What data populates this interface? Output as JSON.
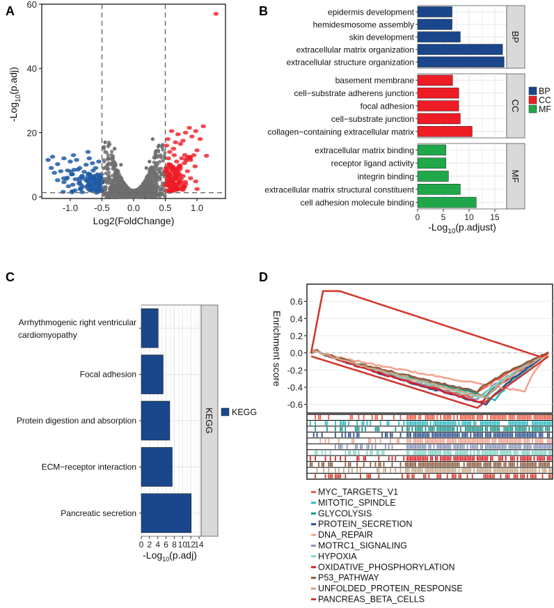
{
  "panels": {
    "A": "A",
    "B": "B",
    "C": "C",
    "D": "D"
  },
  "chart_data": [
    {
      "panel": "A",
      "type": "scatter",
      "title": "",
      "xlabel": "Log2(FoldChange)",
      "ylabel_main": "-Log",
      "ylabel_sub": "10",
      "ylabel_tail": "(p.adj)",
      "xlim": [
        -1.45,
        1.45
      ],
      "ylim": [
        -0.5,
        60
      ],
      "xticks": [
        -1.0,
        -0.5,
        0.0,
        0.5,
        1.0
      ],
      "xtick_labels": [
        "-1.0",
        "-0.5",
        "0.0",
        "0.5",
        "1.0"
      ],
      "yticks": [
        0,
        20,
        40,
        60
      ],
      "thresholds": {
        "fc": 0.5,
        "padj_log": 1.3
      },
      "colors": {
        "down": "#1f5aa6",
        "ns": "#6e6e6e",
        "up": "#ee1c25"
      },
      "highlight_points": {
        "down": [
          [
            -1.35,
            11.5
          ],
          [
            -1.28,
            12.5
          ],
          [
            -1.2,
            10.2
          ],
          [
            -1.1,
            12
          ],
          [
            -1.0,
            11
          ],
          [
            -0.95,
            13
          ],
          [
            -0.9,
            11.5
          ],
          [
            -0.85,
            9
          ],
          [
            -0.75,
            10
          ],
          [
            -0.72,
            14
          ],
          [
            -0.7,
            12
          ],
          [
            -0.65,
            10.5
          ],
          [
            -0.6,
            9
          ],
          [
            -0.55,
            11
          ],
          [
            -1.3,
            9
          ],
          [
            -1.25,
            7.5
          ],
          [
            -1.15,
            8
          ],
          [
            -1.05,
            6
          ],
          [
            -0.98,
            7
          ],
          [
            -0.92,
            5.5
          ],
          [
            -0.88,
            8.5
          ],
          [
            -0.82,
            6.2
          ],
          [
            -0.78,
            7.8
          ],
          [
            -0.74,
            5
          ],
          [
            -0.68,
            6.5
          ],
          [
            -0.64,
            8.2
          ],
          [
            -0.6,
            5.5
          ],
          [
            -0.57,
            7
          ],
          [
            -0.54,
            4.5
          ],
          [
            -0.52,
            6
          ],
          [
            -1.2,
            5.2
          ],
          [
            -1.1,
            4.6
          ],
          [
            -0.96,
            3.8
          ],
          [
            -0.86,
            4.2
          ],
          [
            -0.8,
            3.2
          ],
          [
            -0.72,
            3.6
          ],
          [
            -0.66,
            2.8
          ],
          [
            -0.61,
            3.1
          ],
          [
            -0.56,
            2.5
          ],
          [
            -0.53,
            3.3
          ],
          [
            -0.51,
            2.0
          ],
          [
            -0.7,
            2.2
          ],
          [
            -0.62,
            1.9
          ],
          [
            -0.58,
            1.6
          ]
        ],
        "up": [
          [
            1.3,
            57
          ],
          [
            1.1,
            22
          ],
          [
            1.05,
            18
          ],
          [
            0.98,
            20.5
          ],
          [
            0.92,
            18.8
          ],
          [
            0.88,
            21.5
          ],
          [
            0.82,
            20
          ],
          [
            0.78,
            17.5
          ],
          [
            0.74,
            16.5
          ],
          [
            0.7,
            19.5
          ],
          [
            0.66,
            17
          ],
          [
            0.63,
            15
          ],
          [
            0.6,
            20.5
          ],
          [
            0.57,
            14
          ],
          [
            0.54,
            18
          ],
          [
            0.52,
            16
          ],
          [
            1.0,
            14.5
          ],
          [
            0.95,
            13
          ],
          [
            0.9,
            11.5
          ],
          [
            0.86,
            12.5
          ],
          [
            0.8,
            10.5
          ],
          [
            0.76,
            12
          ],
          [
            0.72,
            9.5
          ],
          [
            0.68,
            11
          ],
          [
            0.64,
            13
          ],
          [
            0.61,
            8.5
          ],
          [
            0.58,
            10
          ],
          [
            0.55,
            12
          ],
          [
            0.53,
            7.5
          ],
          [
            0.51,
            9
          ],
          [
            0.85,
            8
          ],
          [
            0.78,
            6.5
          ],
          [
            0.7,
            7
          ],
          [
            0.65,
            5.5
          ],
          [
            0.6,
            6.2
          ],
          [
            0.56,
            4.8
          ],
          [
            0.53,
            5.5
          ],
          [
            0.51,
            3.8
          ],
          [
            0.75,
            4.5
          ],
          [
            0.67,
            3.5
          ],
          [
            0.59,
            2.8
          ],
          [
            0.55,
            2.2
          ],
          [
            0.52,
            1.8
          ],
          [
            0.9,
            5.8
          ],
          [
            1.15,
            12.8
          ],
          [
            0.97,
            9.5
          ],
          [
            0.62,
            3.2
          ],
          [
            0.8,
            3.0
          ]
        ]
      },
      "ns_points": [
        [
          -0.45,
          17
        ],
        [
          -0.3,
          15
        ],
        [
          0.3,
          18
        ],
        [
          0.4,
          16
        ],
        [
          0.45,
          15.5
        ],
        [
          0.35,
          13
        ],
        [
          -0.4,
          12
        ],
        [
          -0.2,
          10
        ],
        [
          0.25,
          11
        ],
        [
          0.2,
          9
        ]
      ]
    },
    {
      "panel": "B",
      "type": "bar",
      "orientation": "horizontal",
      "title": "",
      "xlabel_main": "-Log",
      "xlabel_sub": "10",
      "xlabel_tail": "(p.adjust)",
      "xlim": [
        0,
        17.3
      ],
      "xticks": [
        0,
        5,
        10,
        15
      ],
      "groups": [
        {
          "name": "BP",
          "color": "#1a478c",
          "categories": [
            "epidermis development",
            "hemidesmosome assembly",
            "skin development",
            "extracellular matrix organization",
            "extracellular structure organization"
          ],
          "values": [
            6.7,
            6.7,
            8.3,
            16.5,
            16.8
          ]
        },
        {
          "name": "CC",
          "color": "#ee1c25",
          "categories": [
            "basement membrane",
            "cell−substrate adherens junction",
            "focal adhesion",
            "cell−substrate junction",
            "collagen−containing extracellular matrix"
          ],
          "values": [
            6.8,
            8.0,
            8.0,
            8.3,
            10.6
          ]
        },
        {
          "name": "MF",
          "color": "#1fa74a",
          "categories": [
            "extracellular matrix binding",
            "receptor ligand activity",
            "integrin binding",
            "extracellular matrix structural constituent",
            "cell adhesion molecule binding"
          ],
          "values": [
            5.5,
            5.5,
            6.0,
            8.3,
            11.4
          ]
        }
      ],
      "legend": [
        "BP",
        "CC",
        "MF"
      ]
    },
    {
      "panel": "C",
      "type": "bar",
      "orientation": "vertical-categories",
      "title": "",
      "xlabel_main": "-Log",
      "xlabel_sub": "10",
      "xlabel_tail": "(p.adj)",
      "xlim": [
        0,
        14.5
      ],
      "xticks": [
        0,
        2,
        4,
        6,
        8,
        10,
        12,
        14
      ],
      "xtick_labels": [
        "0",
        "2",
        "4",
        "6",
        "8",
        "10",
        "12",
        "14"
      ],
      "categories": [
        "Arrhythmogenic right ventricular",
        "Focal adhesion",
        "Protein digestion and absorption",
        "ECM−receptor interaction",
        "Pancreatic secretion"
      ],
      "category_second_line": [
        "cardiomyopathy",
        "",
        "",
        "",
        ""
      ],
      "values": [
        4.1,
        5.3,
        6.9,
        7.5,
        12.1
      ],
      "color": "#1a478c",
      "strip_label": "KEGG",
      "legend": [
        "KEGG"
      ]
    },
    {
      "panel": "D",
      "type": "line",
      "title": "",
      "ylabel": "Enrichment score",
      "ylim": [
        -0.7,
        0.8
      ],
      "yticks": [
        -0.6,
        -0.4,
        -0.2,
        0.0,
        0.2,
        0.4,
        0.6
      ],
      "ytick_labels": [
        "-0.6",
        "-0.4",
        "-0.2",
        "0.0",
        "0.2",
        "0.4",
        "0.6"
      ],
      "series": [
        {
          "name": "MYC_TARGETS_V1",
          "color": "#ef5c45",
          "min_pos": 0.68,
          "min_val": -0.52
        },
        {
          "name": "MITOTIC_SPINDLE",
          "color": "#29b9c0",
          "min_pos": 0.78,
          "min_val": -0.55
        },
        {
          "name": "GLYCOLYSIS",
          "color": "#17968a",
          "min_pos": 0.74,
          "min_val": -0.5
        },
        {
          "name": "PROTEIN_SECRETION",
          "color": "#2a4d8c",
          "min_pos": 0.74,
          "min_val": -0.6
        },
        {
          "name": "DNA_REPAIR",
          "color": "#f2a28e",
          "min_pos": 0.9,
          "min_val": -0.45
        },
        {
          "name": "MOTRC1_SIGNALING",
          "color": "#8b93be",
          "min_pos": 0.7,
          "min_val": -0.55
        },
        {
          "name": "HYPOXIA",
          "color": "#7fd6c8",
          "min_pos": 0.72,
          "min_val": -0.52
        },
        {
          "name": "OXIDATIVE_PHOSPHORYLATION",
          "color": "#d9212a",
          "min_pos": 0.72,
          "min_val": -0.58
        },
        {
          "name": "P53_PATHWAY",
          "color": "#8b5a3c",
          "min_pos": 0.7,
          "min_val": -0.45
        },
        {
          "name": "UNFOLDED_PROTEIN_RESPONSE",
          "color": "#c9a887",
          "min_pos": 0.74,
          "min_val": -0.52
        },
        {
          "name": "PANCREAS_BETA_CELLS",
          "color": "#d03a2e",
          "max_pos": 0.02,
          "max_val": 0.72,
          "min_val": -0.64
        }
      ]
    }
  ]
}
